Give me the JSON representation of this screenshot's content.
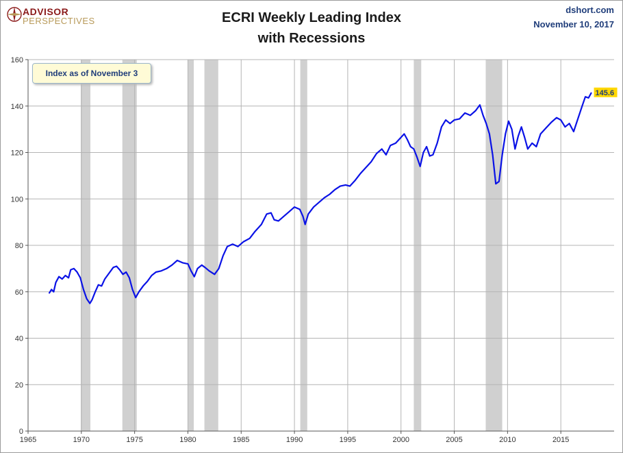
{
  "header": {
    "logo_word1": "ADVISOR",
    "logo_word2": "PERSPECTIVES",
    "title_line1": "ECRI Weekly Leading Index",
    "title_line2": "with Recessions",
    "source": "dshort.com",
    "date": "November 10, 2017",
    "note": "Index as of November 3"
  },
  "colors": {
    "line": "#0a12e6",
    "recession": "#d0d0d0",
    "grid": "#b4b4b4",
    "end_label_bg": "#ffd700"
  },
  "chart_data": {
    "type": "line",
    "xlim": [
      1965,
      2020
    ],
    "ylim": [
      0,
      160
    ],
    "x_ticks": [
      1965,
      1970,
      1975,
      1980,
      1985,
      1990,
      1995,
      2000,
      2005,
      2010,
      2015
    ],
    "y_ticks": [
      0,
      20,
      40,
      60,
      80,
      100,
      120,
      140,
      160
    ],
    "grid": true,
    "recessions": [
      [
        1969.95,
        1970.85
      ],
      [
        1973.85,
        1975.2
      ],
      [
        1980.0,
        1980.55
      ],
      [
        1981.55,
        1982.85
      ],
      [
        1990.55,
        1991.2
      ],
      [
        2001.2,
        2001.9
      ],
      [
        2007.95,
        2009.5
      ]
    ],
    "end_label": "145.6",
    "series": [
      {
        "points": [
          [
            1967.0,
            59.5
          ],
          [
            1967.2,
            61
          ],
          [
            1967.4,
            60
          ],
          [
            1967.6,
            64
          ],
          [
            1967.9,
            66.5
          ],
          [
            1968.2,
            65.5
          ],
          [
            1968.5,
            67
          ],
          [
            1968.8,
            66
          ],
          [
            1969.0,
            69.5
          ],
          [
            1969.3,
            70
          ],
          [
            1969.6,
            68.5
          ],
          [
            1969.9,
            66
          ],
          [
            1970.2,
            61
          ],
          [
            1970.5,
            57
          ],
          [
            1970.8,
            55
          ],
          [
            1971.0,
            56.5
          ],
          [
            1971.3,
            60
          ],
          [
            1971.6,
            63
          ],
          [
            1971.9,
            62.5
          ],
          [
            1972.2,
            65.5
          ],
          [
            1972.6,
            68
          ],
          [
            1973.0,
            70.5
          ],
          [
            1973.3,
            71
          ],
          [
            1973.6,
            69.5
          ],
          [
            1973.9,
            67.5
          ],
          [
            1974.2,
            68.5
          ],
          [
            1974.5,
            66
          ],
          [
            1974.8,
            61
          ],
          [
            1975.1,
            57.5
          ],
          [
            1975.4,
            60
          ],
          [
            1975.8,
            62.5
          ],
          [
            1976.2,
            64.5
          ],
          [
            1976.6,
            67
          ],
          [
            1977.0,
            68.5
          ],
          [
            1977.5,
            69
          ],
          [
            1978.0,
            70
          ],
          [
            1978.5,
            71.5
          ],
          [
            1979.0,
            73.5
          ],
          [
            1979.5,
            72.5
          ],
          [
            1980.0,
            72
          ],
          [
            1980.3,
            69
          ],
          [
            1980.6,
            66.5
          ],
          [
            1980.9,
            70
          ],
          [
            1981.3,
            71.5
          ],
          [
            1981.6,
            70.5
          ],
          [
            1982.0,
            69
          ],
          [
            1982.5,
            67.5
          ],
          [
            1982.9,
            70
          ],
          [
            1983.3,
            75.5
          ],
          [
            1983.7,
            79.5
          ],
          [
            1984.2,
            80.5
          ],
          [
            1984.7,
            79.5
          ],
          [
            1985.2,
            81.5
          ],
          [
            1985.8,
            83
          ],
          [
            1986.3,
            86
          ],
          [
            1986.9,
            89
          ],
          [
            1987.4,
            93.5
          ],
          [
            1987.8,
            94
          ],
          [
            1988.1,
            91
          ],
          [
            1988.5,
            90.5
          ],
          [
            1989.0,
            92.5
          ],
          [
            1989.5,
            94.5
          ],
          [
            1990.0,
            96.5
          ],
          [
            1990.5,
            95.5
          ],
          [
            1990.8,
            92.5
          ],
          [
            1991.0,
            89
          ],
          [
            1991.3,
            93.5
          ],
          [
            1991.8,
            96.5
          ],
          [
            1992.3,
            98.5
          ],
          [
            1992.8,
            100.5
          ],
          [
            1993.3,
            102
          ],
          [
            1993.8,
            104
          ],
          [
            1994.3,
            105.5
          ],
          [
            1994.8,
            106
          ],
          [
            1995.2,
            105.5
          ],
          [
            1995.7,
            108
          ],
          [
            1996.2,
            111
          ],
          [
            1996.7,
            113.5
          ],
          [
            1997.2,
            116
          ],
          [
            1997.7,
            119.5
          ],
          [
            1998.2,
            121.5
          ],
          [
            1998.6,
            119
          ],
          [
            1999.0,
            123
          ],
          [
            1999.5,
            124
          ],
          [
            2000.0,
            126.5
          ],
          [
            2000.3,
            128
          ],
          [
            2000.6,
            125.5
          ],
          [
            2000.9,
            122.5
          ],
          [
            2001.2,
            121.5
          ],
          [
            2001.5,
            118
          ],
          [
            2001.8,
            114
          ],
          [
            2002.1,
            120
          ],
          [
            2002.4,
            122.5
          ],
          [
            2002.7,
            118.5
          ],
          [
            2003.0,
            119
          ],
          [
            2003.4,
            124
          ],
          [
            2003.8,
            131
          ],
          [
            2004.2,
            134
          ],
          [
            2004.6,
            132.5
          ],
          [
            2005.0,
            134
          ],
          [
            2005.5,
            134.5
          ],
          [
            2006.0,
            137
          ],
          [
            2006.5,
            136
          ],
          [
            2007.0,
            138
          ],
          [
            2007.4,
            140.5
          ],
          [
            2007.7,
            136
          ],
          [
            2008.0,
            132.5
          ],
          [
            2008.3,
            128
          ],
          [
            2008.6,
            119
          ],
          [
            2008.9,
            106.5
          ],
          [
            2009.2,
            107.5
          ],
          [
            2009.5,
            119
          ],
          [
            2009.8,
            128
          ],
          [
            2010.1,
            133.5
          ],
          [
            2010.4,
            130
          ],
          [
            2010.7,
            121.5
          ],
          [
            2011.0,
            127
          ],
          [
            2011.3,
            131
          ],
          [
            2011.6,
            126.5
          ],
          [
            2011.9,
            121.5
          ],
          [
            2012.3,
            124
          ],
          [
            2012.7,
            122.5
          ],
          [
            2013.1,
            128
          ],
          [
            2013.6,
            130.5
          ],
          [
            2014.1,
            133
          ],
          [
            2014.6,
            135
          ],
          [
            2015.0,
            134
          ],
          [
            2015.4,
            131
          ],
          [
            2015.8,
            132.5
          ],
          [
            2016.2,
            129
          ],
          [
            2016.6,
            134.5
          ],
          [
            2017.0,
            140
          ],
          [
            2017.3,
            144
          ],
          [
            2017.6,
            143.5
          ],
          [
            2017.85,
            145.6
          ]
        ]
      }
    ]
  }
}
